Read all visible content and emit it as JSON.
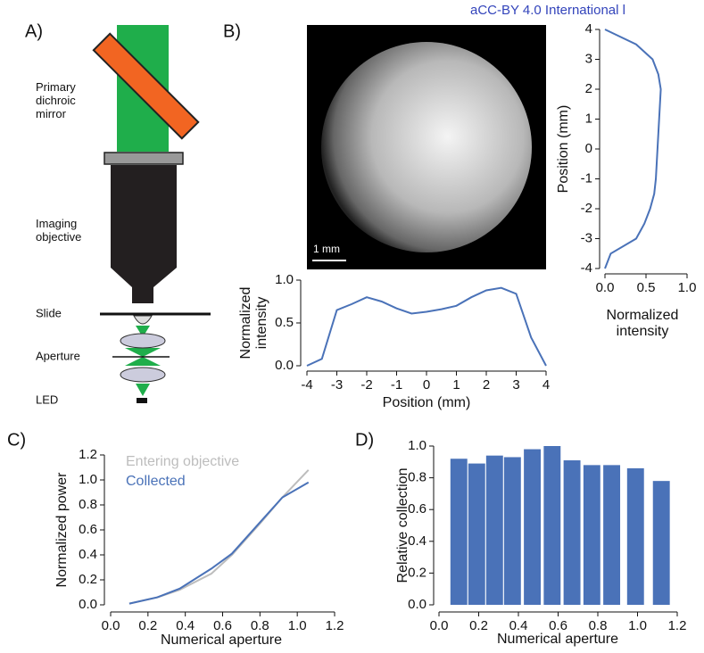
{
  "license_text": "aCC-BY 4.0 International l",
  "panel_labels": [
    "A)",
    "B)",
    "C)",
    "D)"
  ],
  "diagram": {
    "labels": [
      "Primary dichroic mirror",
      "Imaging objective",
      "Slide",
      "Aperture",
      "LED"
    ]
  },
  "image": {
    "scale_bar": "1 mm"
  },
  "chart_data": [
    {
      "type": "line",
      "xlabel": "Position (mm)",
      "ylabel": "Normalized intensity",
      "color": "#4a72b8",
      "x": [
        -4,
        -3.5,
        -3,
        -2.5,
        -2,
        -1.5,
        -1,
        -0.5,
        0,
        0.5,
        1,
        1.5,
        2,
        2.5,
        3,
        3.5,
        4
      ],
      "values": [
        0,
        0.08,
        0.65,
        0.72,
        0.8,
        0.75,
        0.67,
        0.61,
        0.63,
        0.66,
        0.7,
        0.8,
        0.88,
        0.91,
        0.84,
        0.33,
        0
      ],
      "xlim": [
        -4,
        4
      ],
      "xticks": [
        -4,
        -3,
        -2,
        -1,
        0,
        1,
        2,
        3,
        4
      ],
      "ylim": [
        0,
        1
      ],
      "yticks": [
        {
          "value": 0,
          "label": "0.0"
        },
        0.5,
        {
          "value": 1,
          "label": "1.0"
        }
      ],
      "grid": false
    },
    {
      "type": "line",
      "orientation": "vertical",
      "xlabel": "Normalized intensity",
      "ylabel": "Position (mm)",
      "color": "#4a72b8",
      "y": [
        4,
        3.5,
        3,
        2.5,
        2,
        1.5,
        1,
        0.5,
        0,
        -0.5,
        -1,
        -1.5,
        -2,
        -2.5,
        -3,
        -3.5,
        -4
      ],
      "values": [
        0,
        0.38,
        0.58,
        0.65,
        0.68,
        0.67,
        0.66,
        0.65,
        0.64,
        0.63,
        0.62,
        0.6,
        0.55,
        0.48,
        0.38,
        0.07,
        0
      ],
      "xlim": [
        0,
        1
      ],
      "xticks": [
        {
          "value": 0,
          "label": "0.0"
        },
        0.5,
        {
          "value": 1,
          "label": "1.0"
        }
      ],
      "ylim": [
        -4,
        4
      ],
      "yticks": [
        -4,
        -3,
        -2,
        -1,
        0,
        1,
        2,
        3,
        4
      ],
      "grid": false
    },
    {
      "type": "line",
      "xlabel": "Numerical aperture",
      "ylabel": "Normalized power",
      "legend": "upper left",
      "x": [
        0.1,
        0.25,
        0.37,
        0.54,
        0.65,
        0.8,
        0.92,
        1.06
      ],
      "series": [
        {
          "name": "Entering objective",
          "color": "#bdbdbd",
          "values": [
            0.01,
            0.06,
            0.12,
            0.25,
            0.4,
            0.65,
            0.86,
            1.08
          ]
        },
        {
          "name": "Collected",
          "color": "#4a72b8",
          "values": [
            0.01,
            0.06,
            0.13,
            0.29,
            0.41,
            0.66,
            0.86,
            0.98
          ]
        }
      ],
      "xlim": [
        0,
        1.2
      ],
      "xticks": [
        {
          "value": 0,
          "label": "0.0"
        },
        0.2,
        0.4,
        0.6,
        0.8,
        {
          "value": 1,
          "label": "1.0"
        },
        1.2
      ],
      "ylim": [
        0,
        1.2
      ],
      "yticks": [
        {
          "value": 0,
          "label": "0.0"
        },
        0.2,
        0.4,
        0.6,
        0.8,
        {
          "value": 1,
          "label": "1.0"
        },
        1.2
      ],
      "grid": false
    },
    {
      "type": "bar",
      "xlabel": "Numerical aperture",
      "ylabel": "Relative collection",
      "color": "#4a72b8",
      "bar_width": 0.085,
      "x": [
        0.1,
        0.19,
        0.28,
        0.37,
        0.47,
        0.57,
        0.67,
        0.77,
        0.87,
        0.99,
        1.12
      ],
      "values": [
        0.92,
        0.89,
        0.94,
        0.93,
        0.98,
        1.0,
        0.91,
        0.88,
        0.88,
        0.86,
        0.78
      ],
      "xlim": [
        0,
        1.2
      ],
      "xticks": [
        {
          "value": 0,
          "label": "0.0"
        },
        0.2,
        0.4,
        0.6,
        0.8,
        {
          "value": 1,
          "label": "1.0"
        },
        1.2
      ],
      "ylim": [
        0,
        1
      ],
      "yticks": [
        {
          "value": 0,
          "label": "0.0"
        },
        0.2,
        0.4,
        0.6,
        0.8,
        {
          "value": 1,
          "label": "1.0"
        }
      ],
      "grid": false
    }
  ]
}
